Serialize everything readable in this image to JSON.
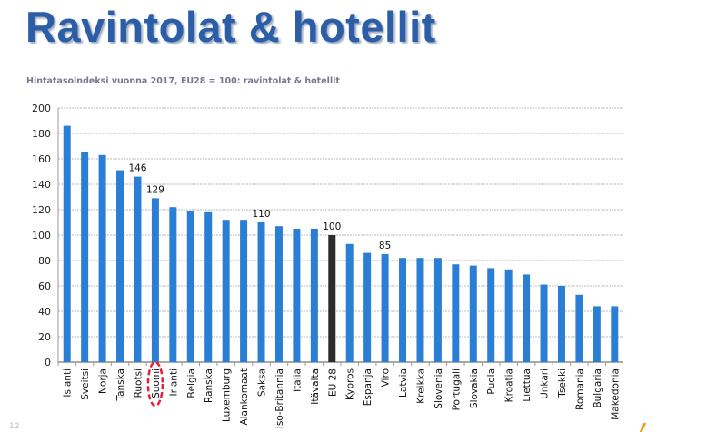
{
  "slide": {
    "title": "Ravintolat & hotellit",
    "page_number": "12"
  },
  "chart_data": {
    "type": "bar",
    "title": "Hintatasoindeksi vuonna 2017, EU28 = 100: ravintolat & hotellit",
    "xlabel": "",
    "ylabel": "",
    "ylim": [
      0,
      200
    ],
    "yticks": [
      0,
      20,
      40,
      60,
      80,
      100,
      120,
      140,
      160,
      180,
      200
    ],
    "grid": true,
    "categories": [
      "Islanti",
      "Sveitsi",
      "Norja",
      "Tanska",
      "Ruotsi",
      "Suomi",
      "Irlanti",
      "Belgia",
      "Ranska",
      "Luxemburg",
      "Alankomaat",
      "Saksa",
      "Iso-Britannia",
      "Italia",
      "Itävalta",
      "EU 28",
      "Kypros",
      "Espanja",
      "Viro",
      "Latvia",
      "Kreikka",
      "Slovenia",
      "Portugali",
      "Slovakia",
      "Puola",
      "Kroatia",
      "Liettua",
      "Unkari",
      "Tsekki",
      "Romania",
      "Bulgaria",
      "Makedonia"
    ],
    "values": [
      186,
      165,
      163,
      151,
      146,
      129,
      122,
      119,
      118,
      112,
      112,
      110,
      107,
      105,
      105,
      100,
      93,
      86,
      85,
      82,
      82,
      82,
      77,
      76,
      74,
      73,
      69,
      61,
      60,
      53,
      44,
      44
    ],
    "data_labels": {
      "Ruotsi": "146",
      "Suomi": "129",
      "Saksa": "110",
      "EU 28": "100",
      "Viro": "85"
    },
    "highlighted_category": "Suomi",
    "colors": {
      "bar": "#2a7fd4",
      "reference_bar": "#2b2b2b",
      "highlight_circle": "#e8203a",
      "title": "#2b5ea6"
    }
  }
}
